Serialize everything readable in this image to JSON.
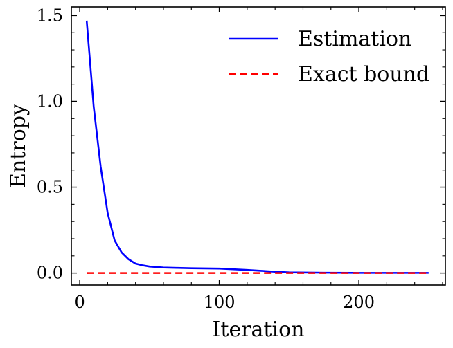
{
  "chart_data": {
    "type": "line",
    "title": "",
    "xlabel": "Iteration",
    "ylabel": "Entropy",
    "xlim": [
      -6,
      262
    ],
    "ylim": [
      -0.07,
      1.55
    ],
    "x_ticks": [
      0,
      100,
      200
    ],
    "x_tick_labels": [
      "0",
      "100",
      "200"
    ],
    "x_minor_step": 20,
    "y_ticks": [
      0.0,
      0.5,
      1.0,
      1.5
    ],
    "y_tick_labels": [
      "0.0",
      "0.5",
      "1.0",
      "1.5"
    ],
    "y_minor_step": 0.1,
    "grid": false,
    "legend_position": "top-right",
    "series": [
      {
        "name": "Estimation",
        "color": "#0000ff",
        "line_style": "solid",
        "x": [
          5,
          10,
          15,
          20,
          25,
          30,
          35,
          40,
          45,
          50,
          60,
          70,
          80,
          90,
          100,
          110,
          120,
          130,
          140,
          150,
          175,
          200,
          225,
          250
        ],
        "y": [
          1.47,
          0.97,
          0.62,
          0.35,
          0.19,
          0.12,
          0.08,
          0.055,
          0.045,
          0.038,
          0.032,
          0.03,
          0.028,
          0.027,
          0.026,
          0.022,
          0.018,
          0.013,
          0.008,
          0.004,
          0.002,
          0.001,
          0.001,
          0.001
        ]
      },
      {
        "name": "Exact bound",
        "color": "#ff0000",
        "line_style": "dashed",
        "x": [
          5,
          250
        ],
        "y": [
          0.0,
          0.0
        ]
      }
    ]
  }
}
